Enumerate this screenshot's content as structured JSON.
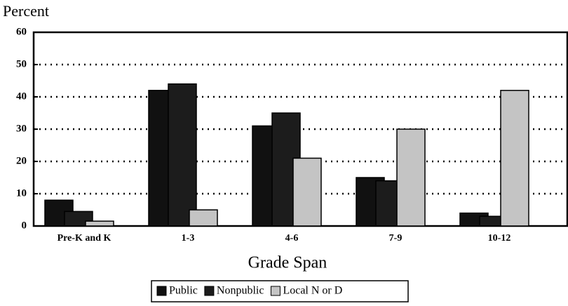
{
  "chart_data": {
    "type": "bar",
    "y_label": "Percent",
    "x_label": "Grade Span",
    "categories": [
      "Pre-K and K",
      "1-3",
      "4-6",
      "7-9",
      "10-12"
    ],
    "series": [
      {
        "name": "Public",
        "color": "#111111",
        "values": [
          8,
          42,
          31,
          15,
          4
        ]
      },
      {
        "name": "Nonpublic",
        "color": "#1c1c1c",
        "values": [
          4.5,
          44,
          35,
          14,
          3
        ]
      },
      {
        "name": "Local N or D",
        "color": "#c4c4c4",
        "values": [
          1.5,
          5,
          21,
          30,
          42
        ]
      }
    ],
    "ylim": [
      0,
      60
    ],
    "yticks": [
      0,
      10,
      20,
      30,
      40,
      50,
      60
    ],
    "grid": true
  }
}
